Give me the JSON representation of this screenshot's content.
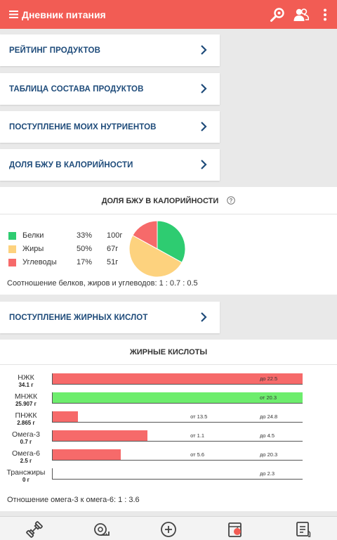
{
  "app": {
    "title": "Дневник питания"
  },
  "nav": {
    "rating": "РЕЙТИНГ ПРОДУКТОВ",
    "table": "ТАБЛИЦА СОСТАВА ПРОДУКТОВ",
    "intake": "ПОСТУПЛЕНИЕ МОИХ НУТРИЕНТОВ",
    "bju": "ДОЛЯ БЖУ В КАЛОРИЙНОСТИ",
    "fatty": "ПОСТУПЛЕНИЕ ЖИРНЫХ КИСЛОТ"
  },
  "bju": {
    "title": "ДОЛЯ БЖУ В КАЛОРИЙНОСТИ",
    "help_icon": "question-circle-icon",
    "items": [
      {
        "name": "Белки",
        "percent": "33%",
        "grams": "100г",
        "color": "#2ecc71",
        "share": 33
      },
      {
        "name": "Жиры",
        "percent": "50%",
        "grams": "67г",
        "color": "#fdd27e",
        "share": 50
      },
      {
        "name": "Углеводы",
        "percent": "17%",
        "grams": "51г",
        "color": "#f66a6a",
        "share": 17
      }
    ],
    "ratio_text": "Соотношение белков, жиров и углеводов: 1 : 0.7 : 0.5"
  },
  "fatty": {
    "title": "ЖИРНЫЕ КИСЛОТЫ",
    "scale_max": 24.5,
    "rows": [
      {
        "name": "НЖК",
        "value": "34.1 г",
        "amount": 24.5,
        "color": "#f66a6a",
        "marks": [
          {
            "text": "до 22.5",
            "at": 20.3
          }
        ]
      },
      {
        "name": "МНЖК",
        "value": "25.907 г",
        "amount": 24.5,
        "color": "#6ded6d",
        "marks": [
          {
            "text": "от 20.3",
            "at": 20.3
          }
        ]
      },
      {
        "name": "ПНЖК",
        "value": "2.865 г",
        "amount": 2.5,
        "color": "#f66a6a",
        "marks": [
          {
            "text": "от 13.5",
            "at": 13.5
          },
          {
            "text": "до 24.8",
            "at": 20.3
          }
        ]
      },
      {
        "name": "Омега-3",
        "value": "0.7 г",
        "amount": 9.3,
        "color": "#f66a6a",
        "marks": [
          {
            "text": "от 1.1",
            "at": 13.5
          },
          {
            "text": "до 4.5",
            "at": 20.3
          }
        ]
      },
      {
        "name": "Омега-6",
        "value": "2.5 г",
        "amount": 6.7,
        "color": "#f66a6a",
        "marks": [
          {
            "text": "от 5.6",
            "at": 13.5
          },
          {
            "text": "до 20.3",
            "at": 20.3
          }
        ]
      },
      {
        "name": "Трансжиры",
        "value": "0 г",
        "amount": 0,
        "color": "#f66a6a",
        "marks": [
          {
            "text": "до 2.3",
            "at": 20.3
          }
        ]
      }
    ],
    "ratio_text": "Отношение омега-3 к омега-6: 1 : 3.6"
  },
  "bottom_nav": [
    {
      "icon": "dumbbell-icon"
    },
    {
      "icon": "measuring-tape-icon"
    },
    {
      "icon": "add-circle-icon"
    },
    {
      "icon": "apple-notebook-icon"
    },
    {
      "icon": "checklist-document-icon"
    }
  ]
}
